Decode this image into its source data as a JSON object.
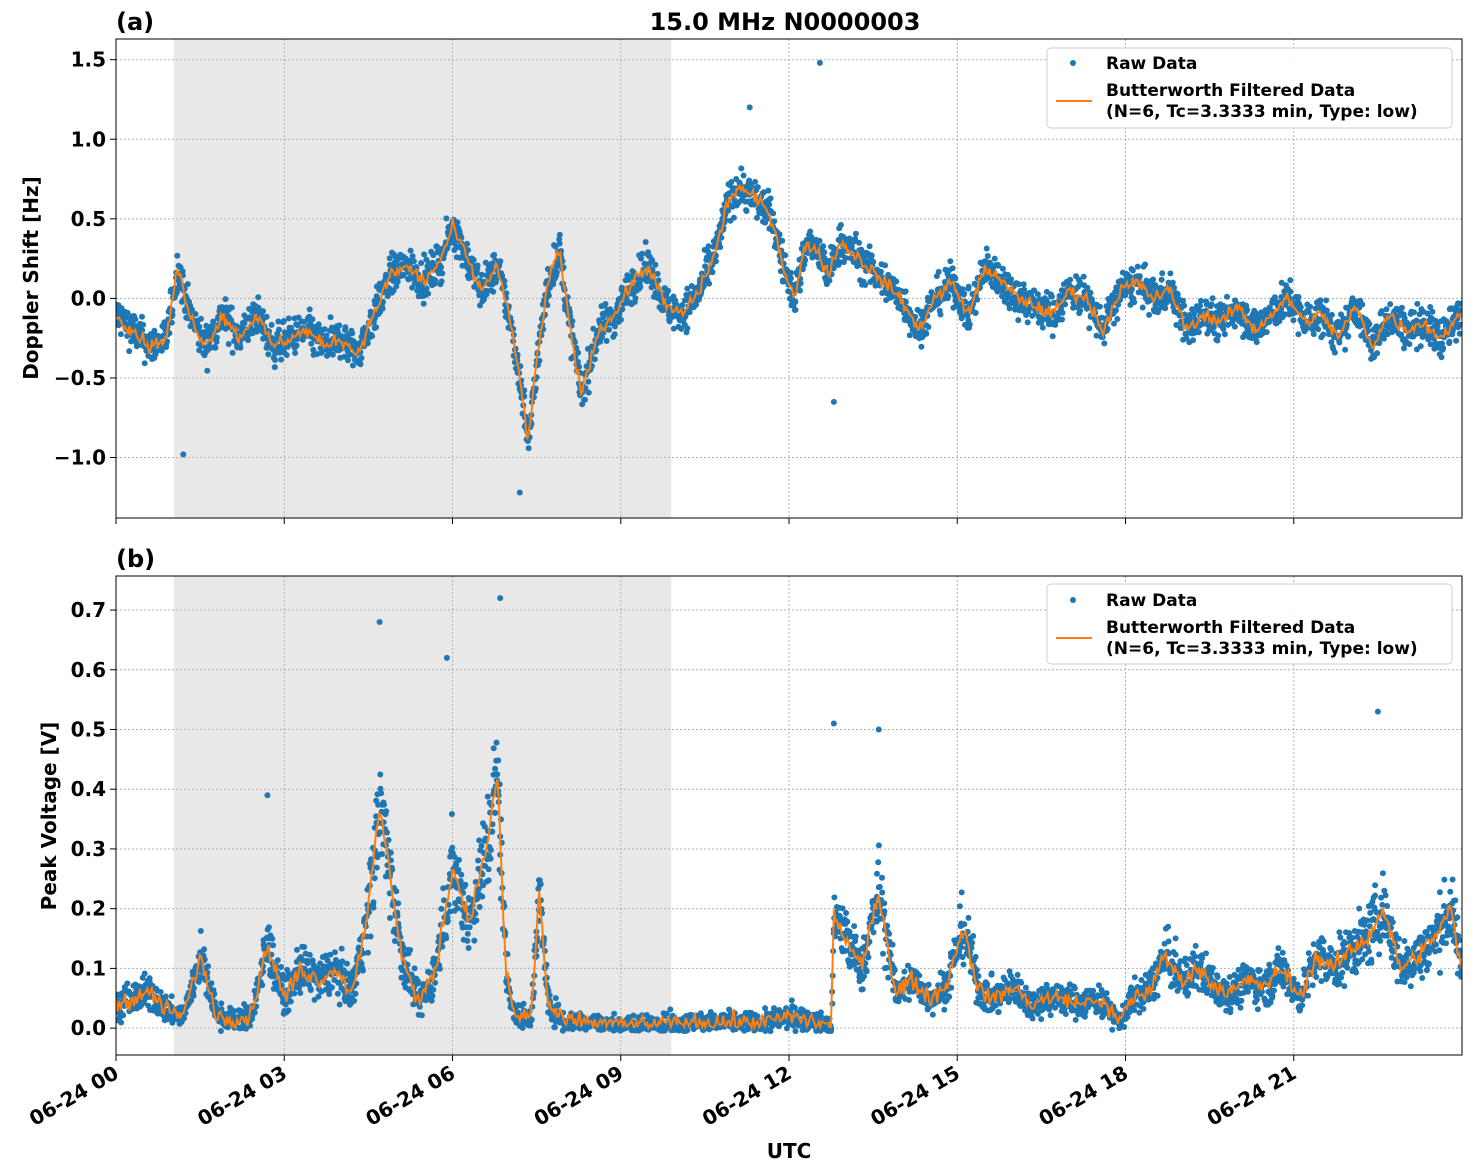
{
  "figure": {
    "title": "15.0 MHz N0000003",
    "xlabel": "UTC",
    "x_ticks": [
      "06-24 00",
      "06-24 03",
      "06-24 06",
      "06-24 09",
      "06-24 12",
      "06-24 15",
      "06-24 18",
      "06-24 21"
    ],
    "shaded_interval_hours": [
      1.03,
      9.9
    ],
    "colors": {
      "raw": "#1f77b4",
      "filtered": "#ff7f0e",
      "shade": "#e8e8e8"
    }
  },
  "chart_data": [
    {
      "panel": "(a)",
      "type": "scatter",
      "title": "15.0 MHz N0000003",
      "xlabel": "",
      "ylabel": "Doppler Shift [Hz]",
      "x_unit": "hours UTC since 06-24 00",
      "xlim": [
        0,
        24
      ],
      "ylim": [
        -1.38,
        1.63
      ],
      "y_ticks": [
        1.5,
        1.0,
        0.5,
        0.0,
        -0.5,
        -1.0
      ],
      "y_tick_labels": [
        "1.5",
        "1.0",
        "0.5",
        "0.0",
        "−0.5",
        "−1.0"
      ],
      "legend": {
        "placement": "top-right",
        "entries": [
          "Raw Data",
          "Butterworth Filtered Data",
          "(N=6, Tc=3.3333 min, Type: low)"
        ]
      },
      "series": [
        {
          "name": "Raw Data",
          "style": "points",
          "spread": 0.12
        },
        {
          "name": "Butterworth Filtered Data (N=6, Tc=3.3333 min, Type: low)",
          "style": "line"
        }
      ],
      "filtered_trend": {
        "x": [
          0,
          0.3,
          0.6,
          0.9,
          1.1,
          1.3,
          1.6,
          1.9,
          2.2,
          2.5,
          2.8,
          3.1,
          3.4,
          3.7,
          4.0,
          4.3,
          4.6,
          4.9,
          5.2,
          5.5,
          5.8,
          6.0,
          6.2,
          6.5,
          6.8,
          7.0,
          7.2,
          7.35,
          7.5,
          7.7,
          7.9,
          8.1,
          8.3,
          8.6,
          8.9,
          9.2,
          9.5,
          9.8,
          10.1,
          10.4,
          10.7,
          10.9,
          11.1,
          11.3,
          11.5,
          11.7,
          11.9,
          12.1,
          12.3,
          12.5,
          12.7,
          12.9,
          13.1,
          13.4,
          13.7,
          14.0,
          14.3,
          14.6,
          14.9,
          15.2,
          15.5,
          15.8,
          16.1,
          16.4,
          16.7,
          17.0,
          17.3,
          17.6,
          17.9,
          18.2,
          18.5,
          18.8,
          19.1,
          19.4,
          19.7,
          20.0,
          20.3,
          20.6,
          20.9,
          21.2,
          21.5,
          21.8,
          22.1,
          22.4,
          22.7,
          23.0,
          23.3,
          23.6,
          24.0
        ],
        "y": [
          -0.1,
          -0.2,
          -0.3,
          -0.25,
          0.2,
          -0.1,
          -0.3,
          -0.1,
          -0.25,
          -0.1,
          -0.3,
          -0.25,
          -0.2,
          -0.3,
          -0.25,
          -0.35,
          -0.1,
          0.15,
          0.2,
          0.1,
          0.25,
          0.45,
          0.3,
          0.05,
          0.2,
          -0.1,
          -0.5,
          -0.9,
          -0.4,
          0.1,
          0.3,
          -0.2,
          -0.6,
          -0.2,
          -0.1,
          0.1,
          0.2,
          -0.05,
          -0.1,
          0.05,
          0.3,
          0.6,
          0.7,
          0.65,
          0.6,
          0.5,
          0.2,
          0.0,
          0.35,
          0.3,
          0.15,
          0.35,
          0.3,
          0.2,
          0.1,
          0.0,
          -0.2,
          0.0,
          0.1,
          -0.1,
          0.2,
          0.1,
          0.0,
          -0.05,
          -0.1,
          0.05,
          0.0,
          -0.2,
          0.05,
          0.1,
          0.0,
          0.05,
          -0.2,
          -0.1,
          -0.15,
          -0.05,
          -0.2,
          -0.1,
          0.0,
          -0.15,
          -0.1,
          -0.25,
          -0.05,
          -0.3,
          -0.1,
          -0.2,
          -0.15,
          -0.25,
          -0.1
        ]
      },
      "notable_points": [
        {
          "x": 12.55,
          "y": 1.48
        },
        {
          "x": 11.3,
          "y": 1.2
        },
        {
          "x": 7.2,
          "y": -1.22
        },
        {
          "x": 12.8,
          "y": -0.65
        },
        {
          "x": 1.2,
          "y": -0.98
        }
      ]
    },
    {
      "panel": "(b)",
      "type": "scatter",
      "title": "",
      "xlabel": "UTC",
      "ylabel": "Peak Voltage [V]",
      "x_unit": "hours UTC since 06-24 00",
      "xlim": [
        0,
        24
      ],
      "ylim": [
        -0.045,
        0.757
      ],
      "y_ticks": [
        0.7,
        0.6,
        0.5,
        0.4,
        0.3,
        0.2,
        0.1,
        0.0
      ],
      "y_tick_labels": [
        "0.7",
        "0.6",
        "0.5",
        "0.4",
        "0.3",
        "0.2",
        "0.1",
        "0.0"
      ],
      "legend": {
        "placement": "top-right",
        "entries": [
          "Raw Data",
          "Butterworth Filtered Data",
          "(N=6, Tc=3.3333 min, Type: low)"
        ]
      },
      "series": [
        {
          "name": "Raw Data",
          "style": "points",
          "spread": 0.06
        },
        {
          "name": "Butterworth Filtered Data (N=6, Tc=3.3333 min, Type: low)",
          "style": "line"
        }
      ],
      "filtered_trend": {
        "x": [
          0,
          0.3,
          0.6,
          0.9,
          1.2,
          1.5,
          1.8,
          2.1,
          2.4,
          2.7,
          3.0,
          3.3,
          3.6,
          3.9,
          4.2,
          4.5,
          4.7,
          4.9,
          5.1,
          5.4,
          5.7,
          6.0,
          6.3,
          6.6,
          6.8,
          6.95,
          7.1,
          7.4,
          7.55,
          7.7,
          8.0,
          8.5,
          9.0,
          9.5,
          10.0,
          10.5,
          11.0,
          11.5,
          12.0,
          12.5,
          12.75,
          12.8,
          13.0,
          13.3,
          13.6,
          13.9,
          14.2,
          14.5,
          14.8,
          15.1,
          15.4,
          15.7,
          16.0,
          16.3,
          16.6,
          16.9,
          17.2,
          17.5,
          17.7,
          17.9,
          18.1,
          18.4,
          18.7,
          19.0,
          19.3,
          19.6,
          19.9,
          20.2,
          20.5,
          20.8,
          21.1,
          21.4,
          21.7,
          22.0,
          22.3,
          22.6,
          22.9,
          23.2,
          23.5,
          23.8,
          24.0
        ],
        "y": [
          0.04,
          0.05,
          0.06,
          0.03,
          0.02,
          0.12,
          0.02,
          0.015,
          0.02,
          0.14,
          0.05,
          0.1,
          0.08,
          0.1,
          0.06,
          0.2,
          0.37,
          0.25,
          0.12,
          0.04,
          0.1,
          0.27,
          0.18,
          0.3,
          0.42,
          0.1,
          0.02,
          0.02,
          0.23,
          0.04,
          0.01,
          0.01,
          0.005,
          0.005,
          0.008,
          0.01,
          0.01,
          0.008,
          0.02,
          0.01,
          0.0,
          0.19,
          0.15,
          0.1,
          0.23,
          0.06,
          0.08,
          0.05,
          0.07,
          0.17,
          0.06,
          0.05,
          0.07,
          0.04,
          0.05,
          0.05,
          0.04,
          0.05,
          0.03,
          0.01,
          0.05,
          0.06,
          0.12,
          0.08,
          0.1,
          0.07,
          0.06,
          0.08,
          0.07,
          0.1,
          0.05,
          0.12,
          0.1,
          0.13,
          0.15,
          0.2,
          0.1,
          0.12,
          0.15,
          0.2,
          0.09
        ]
      },
      "notable_points": [
        {
          "x": 6.85,
          "y": 0.72
        },
        {
          "x": 4.7,
          "y": 0.68
        },
        {
          "x": 5.9,
          "y": 0.62
        },
        {
          "x": 12.8,
          "y": 0.51
        },
        {
          "x": 13.6,
          "y": 0.5
        },
        {
          "x": 22.5,
          "y": 0.53
        },
        {
          "x": 2.7,
          "y": 0.39
        }
      ]
    }
  ]
}
